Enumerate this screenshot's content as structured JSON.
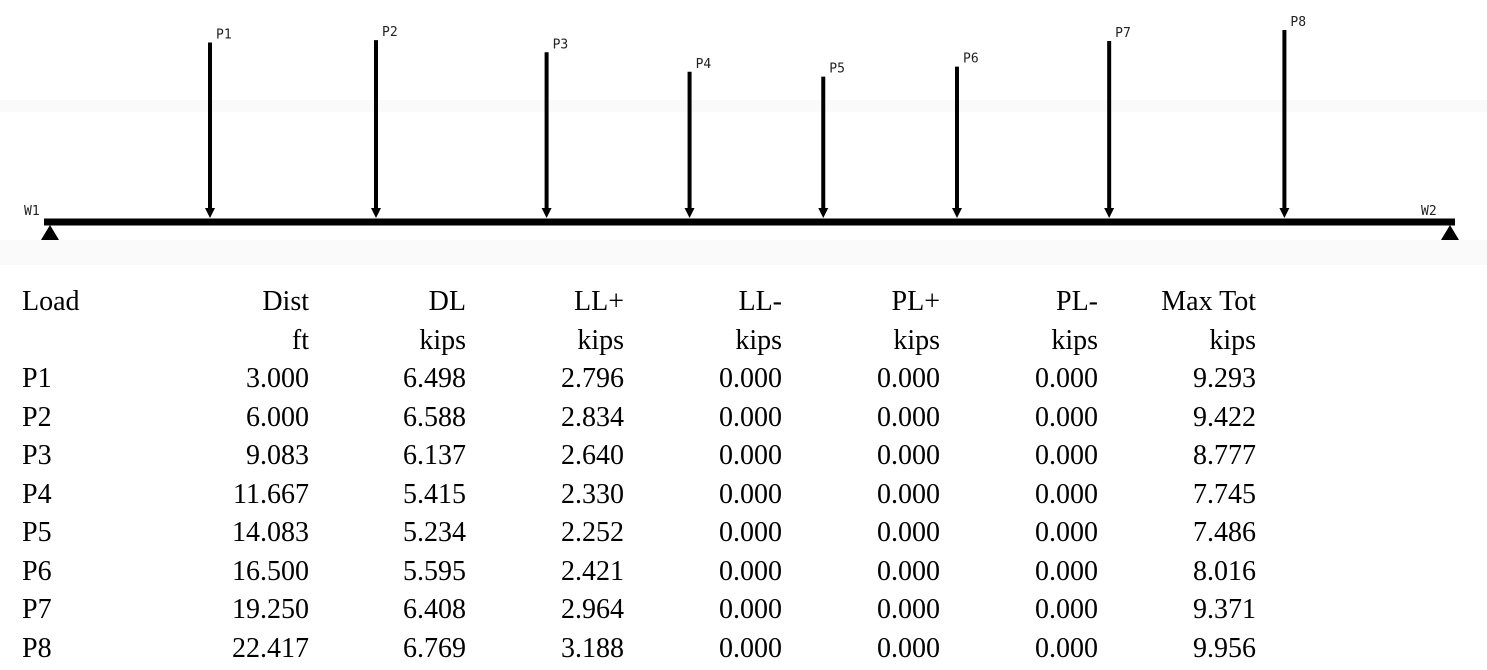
{
  "beam": {
    "left_support_label": "W1",
    "right_support_label": "W2"
  },
  "loads": [
    {
      "label": "P1",
      "dist": "3.000",
      "dl": "6.498",
      "ll_pos": "2.796",
      "ll_neg": "0.000",
      "pl_pos": "0.000",
      "pl_neg": "0.000",
      "max_tot": "9.293"
    },
    {
      "label": "P2",
      "dist": "6.000",
      "dl": "6.588",
      "ll_pos": "2.834",
      "ll_neg": "0.000",
      "pl_pos": "0.000",
      "pl_neg": "0.000",
      "max_tot": "9.422"
    },
    {
      "label": "P3",
      "dist": "9.083",
      "dl": "6.137",
      "ll_pos": "2.640",
      "ll_neg": "0.000",
      "pl_pos": "0.000",
      "pl_neg": "0.000",
      "max_tot": "8.777"
    },
    {
      "label": "P4",
      "dist": "11.667",
      "dl": "5.415",
      "ll_pos": "2.330",
      "ll_neg": "0.000",
      "pl_pos": "0.000",
      "pl_neg": "0.000",
      "max_tot": "7.745"
    },
    {
      "label": "P5",
      "dist": "14.083",
      "dl": "5.234",
      "ll_pos": "2.252",
      "ll_neg": "0.000",
      "pl_pos": "0.000",
      "pl_neg": "0.000",
      "max_tot": "7.486"
    },
    {
      "label": "P6",
      "dist": "16.500",
      "dl": "5.595",
      "ll_pos": "2.421",
      "ll_neg": "0.000",
      "pl_pos": "0.000",
      "pl_neg": "0.000",
      "max_tot": "8.016"
    },
    {
      "label": "P7",
      "dist": "19.250",
      "dl": "6.408",
      "ll_pos": "2.964",
      "ll_neg": "0.000",
      "pl_pos": "0.000",
      "pl_neg": "0.000",
      "max_tot": "9.371"
    },
    {
      "label": "P8",
      "dist": "22.417",
      "dl": "6.769",
      "ll_pos": "3.188",
      "ll_neg": "0.000",
      "pl_pos": "0.000",
      "pl_neg": "0.000",
      "max_tot": "9.956"
    }
  ],
  "table": {
    "headers": [
      {
        "line1": "Load",
        "line2": ""
      },
      {
        "line1": "Dist",
        "line2": "ft"
      },
      {
        "line1": "DL",
        "line2": "kips"
      },
      {
        "line1": "LL+",
        "line2": "kips"
      },
      {
        "line1": "LL-",
        "line2": "kips"
      },
      {
        "line1": "PL+",
        "line2": "kips"
      },
      {
        "line1": "PL-",
        "line2": "kips"
      },
      {
        "line1": "Max Tot",
        "line2": "kips"
      }
    ],
    "column_keys": [
      "label",
      "dist",
      "dl",
      "ll_pos",
      "ll_neg",
      "pl_pos",
      "pl_neg",
      "max_tot"
    ]
  }
}
